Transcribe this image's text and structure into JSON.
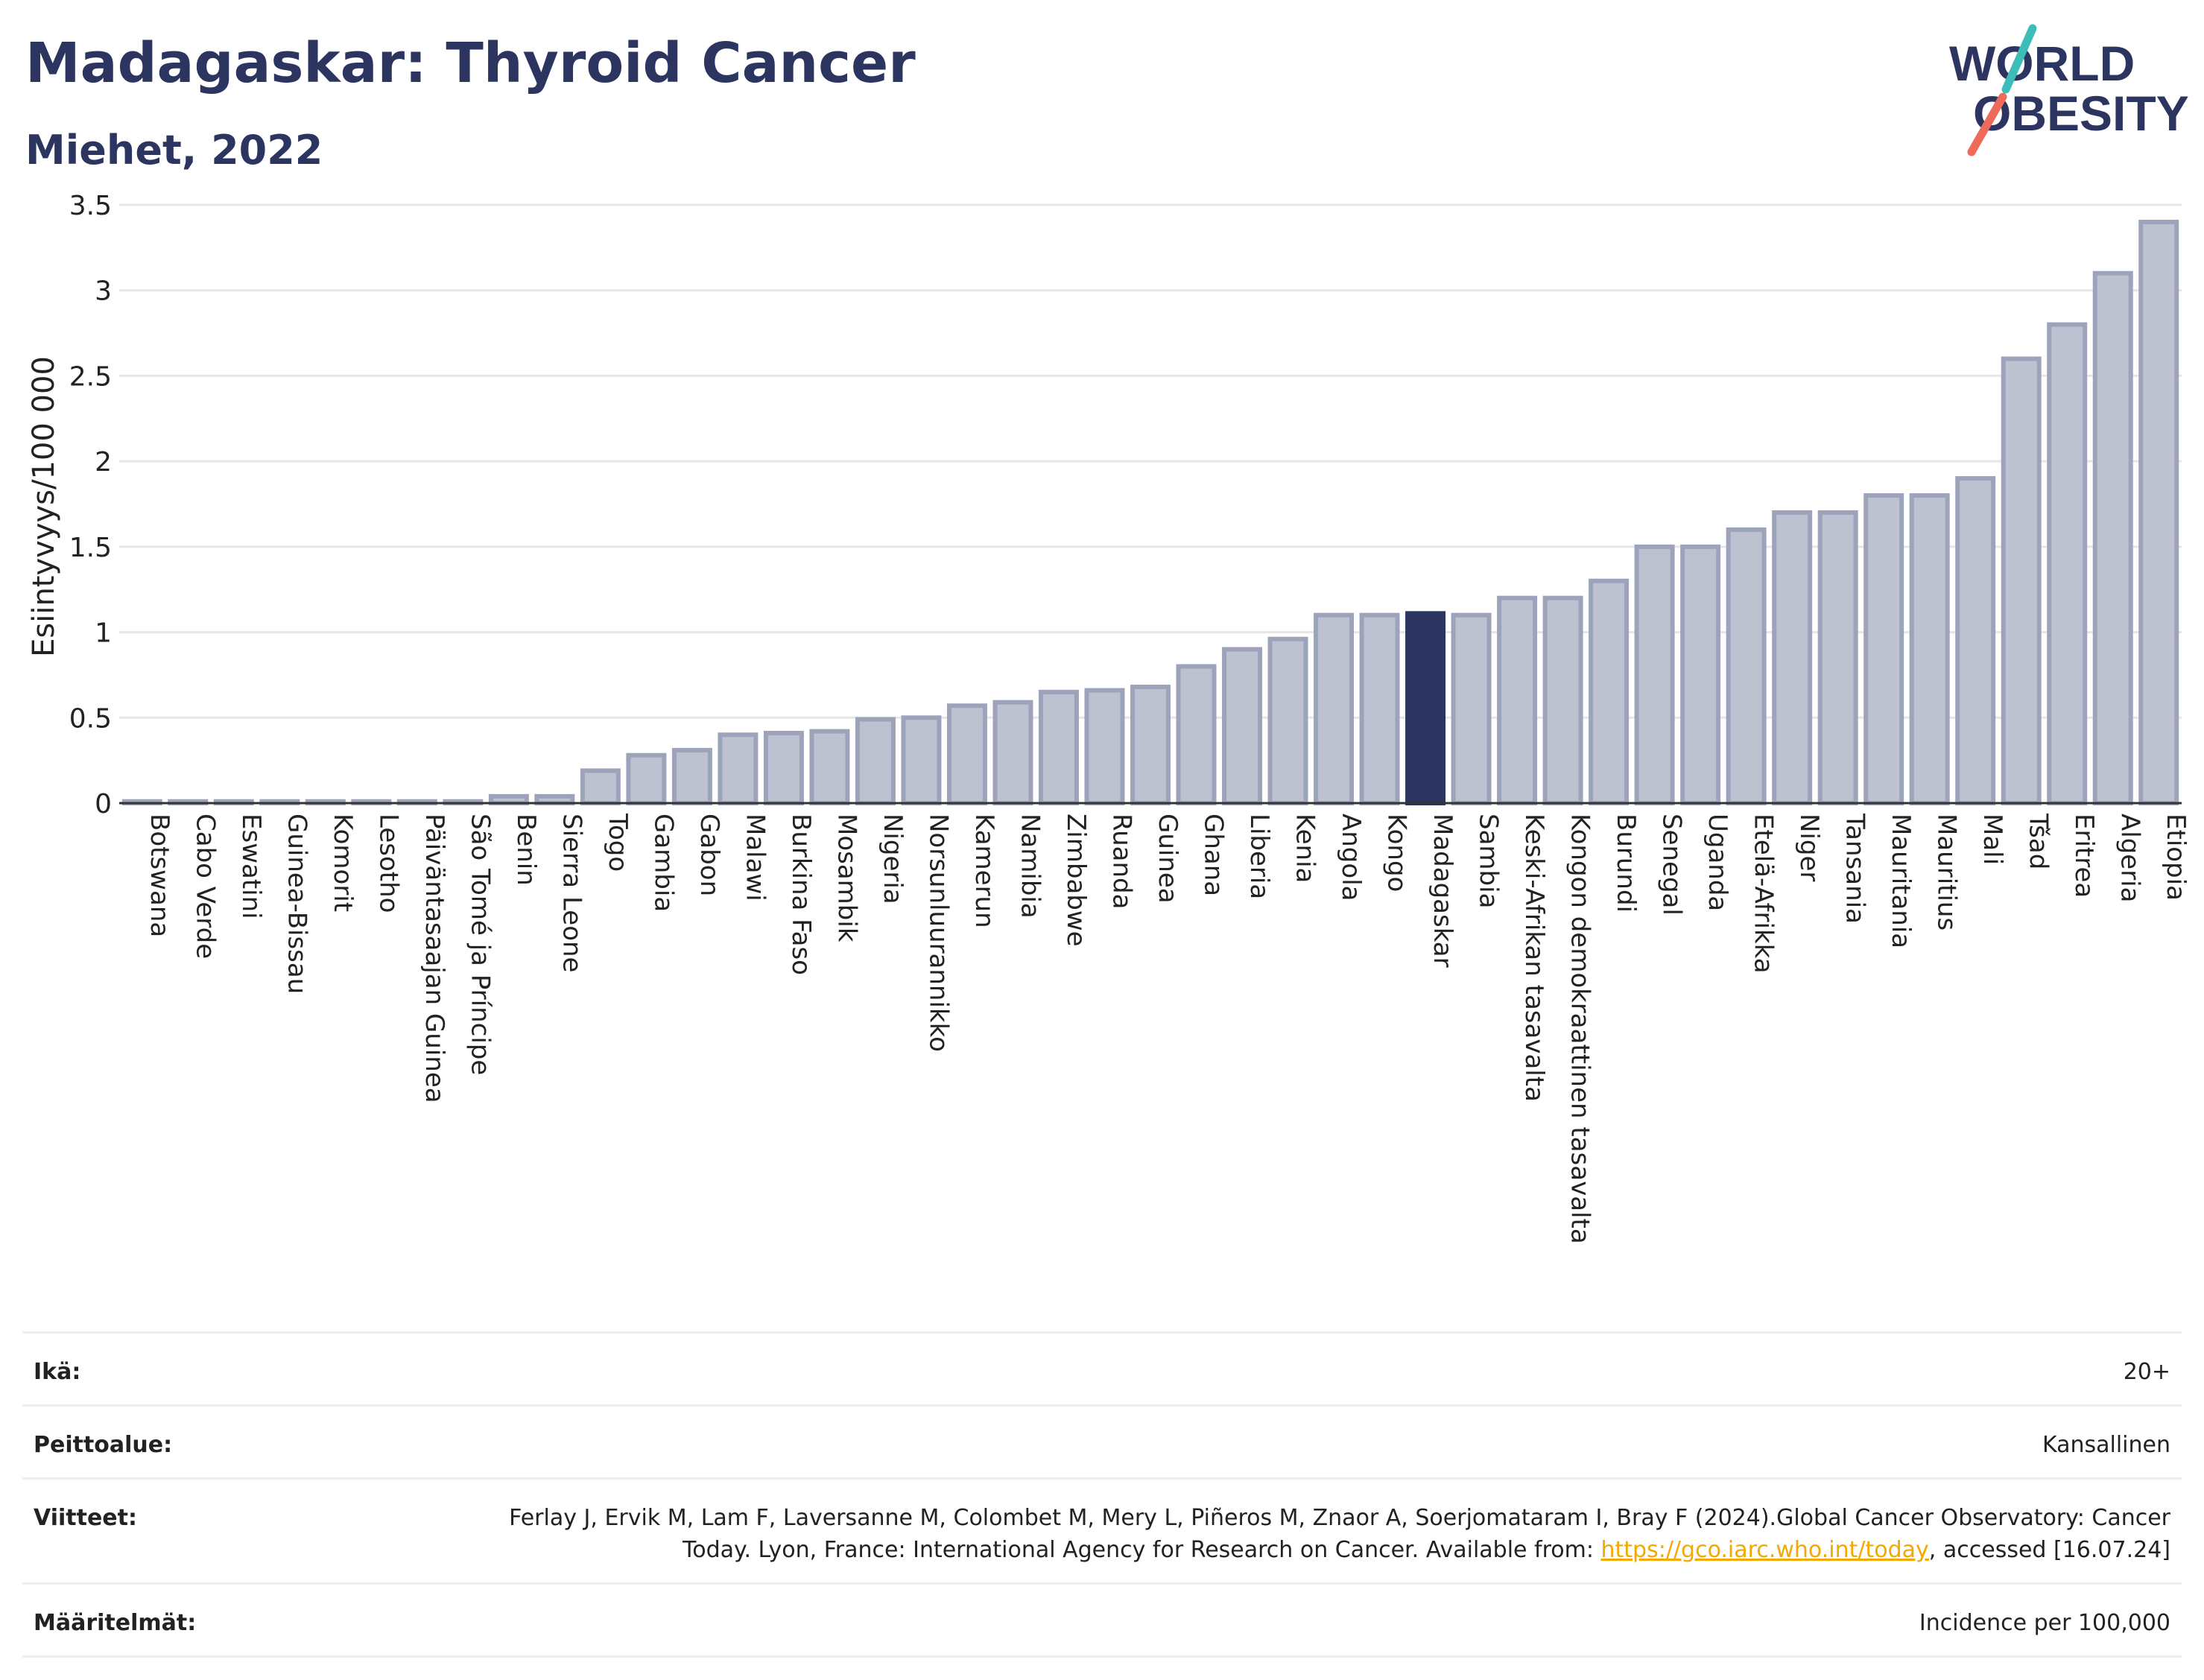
{
  "header": {
    "title": "Madagaskar: Thyroid Cancer",
    "subtitle": "Miehet, 2022"
  },
  "logo": {
    "line1": "WORLD",
    "line2": "OBESITY",
    "teal": "#3dbdb8",
    "coral": "#ee6b5c",
    "navy": "#2b3560"
  },
  "colors": {
    "bar": "#bdc1d0",
    "bar_edge": "#9ea3bc",
    "highlight": "#2b3560",
    "grid": "#e6e6e6"
  },
  "chart_data": {
    "type": "bar",
    "title": "Madagaskar: Thyroid Cancer",
    "subtitle": "Miehet, 2022",
    "ylabel": "Esiintyvyys/100 000",
    "xlabel": "",
    "ylim": [
      0,
      3.5
    ],
    "yticks": [
      0,
      0.5,
      1,
      1.5,
      2,
      2.5,
      3,
      3.5
    ],
    "ytick_labels": [
      "0",
      "0.5",
      "1",
      "1.5",
      "2",
      "2.5",
      "3",
      "3.5"
    ],
    "grid": true,
    "highlight": "Madagaskar",
    "categories": [
      "Botswana",
      "Cabo Verde",
      "Eswatini",
      "Guinea-Bissau",
      "Komorit",
      "Lesotho",
      "Päiväntasaajan Guinea",
      "São Tomé ja Príncipe",
      "Benin",
      "Sierra Leone",
      "Togo",
      "Gambia",
      "Gabon",
      "Malawi",
      "Burkina Faso",
      "Mosambik",
      "Nigeria",
      "Norsunluurannikko",
      "Kamerun",
      "Namibia",
      "Zimbabwe",
      "Ruanda",
      "Guinea",
      "Ghana",
      "Liberia",
      "Kenia",
      "Angola",
      "Kongo",
      "Madagaskar",
      "Sambia",
      "Keski-Afrikan tasavalta",
      "Kongon demokraattinen tasavalta",
      "Burundi",
      "Senegal",
      "Uganda",
      "Etelä-Afrikka",
      "Niger",
      "Tansania",
      "Mauritania",
      "Mauritius",
      "Mali",
      "Tšad",
      "Eritrea",
      "Algeria",
      "Etiopia"
    ],
    "values": [
      0.01,
      0.01,
      0.01,
      0.01,
      0.01,
      0.01,
      0.01,
      0.01,
      0.04,
      0.04,
      0.19,
      0.28,
      0.31,
      0.4,
      0.41,
      0.42,
      0.49,
      0.5,
      0.57,
      0.59,
      0.65,
      0.66,
      0.68,
      0.8,
      0.9,
      0.96,
      1.1,
      1.1,
      1.11,
      1.1,
      1.2,
      1.2,
      1.3,
      1.5,
      1.5,
      1.6,
      1.7,
      1.7,
      1.8,
      1.8,
      1.9,
      2.6,
      2.8,
      3.1,
      3.4
    ]
  },
  "info": [
    {
      "label": "Ikä:",
      "value": "20+"
    },
    {
      "label": "Peittoalue:",
      "value": "Kansallinen"
    },
    {
      "label": "Viitteet:",
      "value": "Ferlay J, Ervik M, Lam F, Laversanne M, Colombet M, Mery L, Piñeros M, Znaor A, Soerjomataram I, Bray F (2024).Global Cancer Observatory: Cancer Today. Lyon, France: International Agency for Research on Cancer. Available from: ",
      "link": "https://gco.iarc.who.int/today",
      "suffix": ", accessed [16.07.24]"
    },
    {
      "label": "Määritelmät:",
      "value": "Incidence per 100,000"
    }
  ]
}
